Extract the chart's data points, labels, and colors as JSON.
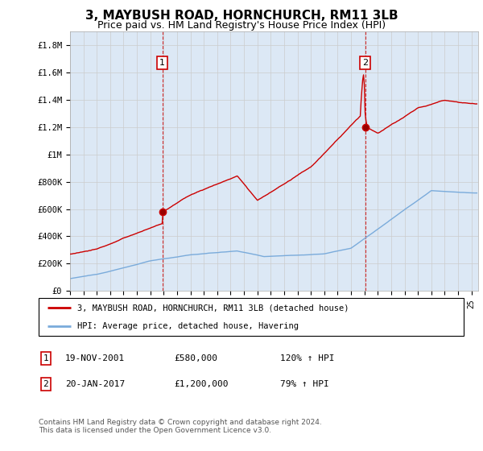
{
  "title": "3, MAYBUSH ROAD, HORNCHURCH, RM11 3LB",
  "subtitle": "Price paid vs. HM Land Registry's House Price Index (HPI)",
  "ylabel_ticks": [
    "£0",
    "£200K",
    "£400K",
    "£600K",
    "£800K",
    "£1M",
    "£1.2M",
    "£1.4M",
    "£1.6M",
    "£1.8M"
  ],
  "ytick_values": [
    0,
    200000,
    400000,
    600000,
    800000,
    1000000,
    1200000,
    1400000,
    1600000,
    1800000
  ],
  "ylim": [
    0,
    1900000
  ],
  "xlim_start": 1995.0,
  "xlim_end": 2025.5,
  "sale1_x": 2001.9,
  "sale1_y": 580000,
  "sale2_x": 2017.05,
  "sale2_y": 1200000,
  "hpi_color": "#7aabdb",
  "price_color": "#cc0000",
  "vline_color": "#cc0000",
  "plot_bg_color": "#dce8f5",
  "legend_entries": [
    "3, MAYBUSH ROAD, HORNCHURCH, RM11 3LB (detached house)",
    "HPI: Average price, detached house, Havering"
  ],
  "footnote": "Contains HM Land Registry data © Crown copyright and database right 2024.\nThis data is licensed under the Open Government Licence v3.0.",
  "background_color": "#ffffff",
  "grid_color": "#cccccc",
  "ann1_date": "19-NOV-2001",
  "ann1_price": "£580,000",
  "ann1_hpi": "120% ↑ HPI",
  "ann2_date": "20-JAN-2017",
  "ann2_price": "£1,200,000",
  "ann2_hpi": "79% ↑ HPI"
}
